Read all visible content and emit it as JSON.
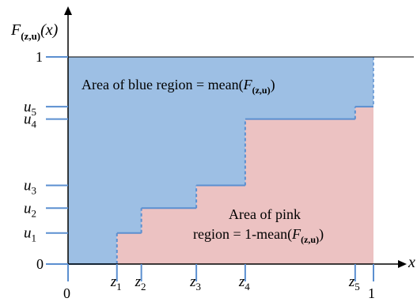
{
  "figure": {
    "y_axis_label": {
      "letter": "F",
      "subscript": "(z,u)",
      "arg": "(x)"
    },
    "x_axis_label": "x",
    "y_ticks": [
      {
        "letter": "u",
        "sub": "1",
        "value": 0.15
      },
      {
        "letter": "u",
        "sub": "2",
        "value": 0.27
      },
      {
        "letter": "u",
        "sub": "3",
        "value": 0.38
      },
      {
        "letter": "u",
        "sub": "4",
        "value": 0.7
      },
      {
        "letter": "u",
        "sub": "5",
        "value": 0.76
      }
    ],
    "y_tick_zero": "0",
    "y_tick_one": "1",
    "x_ticks": [
      {
        "letter": "z",
        "sub": "1",
        "value": 0.16
      },
      {
        "letter": "z",
        "sub": "2",
        "value": 0.24
      },
      {
        "letter": "z",
        "sub": "3",
        "value": 0.42
      },
      {
        "letter": "z",
        "sub": "4",
        "value": 0.58
      },
      {
        "letter": "z",
        "sub": "5",
        "value": 0.94
      }
    ],
    "x_tick_zero": "0",
    "x_tick_one": "1",
    "blue_label": {
      "prefix": "Area of blue region = mean(",
      "letter": "F",
      "subscript": "(z,u)",
      "suffix": ")"
    },
    "pink_label": {
      "line1": "Area of pink",
      "line2_prefix": "region = 1-mean(",
      "letter": "F",
      "subscript": "(z,u)",
      "suffix": ")"
    },
    "colors": {
      "blue_region": "#9dbfe4",
      "pink_region": "#ecc2c2",
      "step_line": "#5b8fd0",
      "axis": "#000000",
      "tick": "#5b8fd0"
    }
  }
}
